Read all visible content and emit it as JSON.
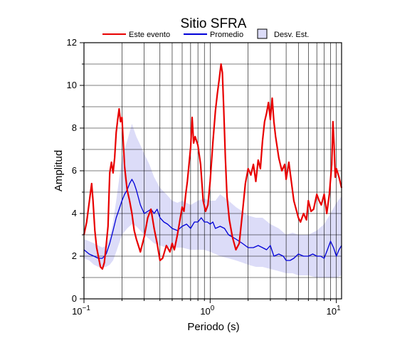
{
  "chart_data": {
    "type": "line",
    "title": "Sitio SFRA",
    "xlabel": "Periodo (s)",
    "ylabel": "Amplitud",
    "x_scale": "log",
    "xlim": [
      0.1,
      11
    ],
    "ylim": [
      0,
      12
    ],
    "x_ticks": [
      {
        "value": 0.1,
        "base": "10",
        "exp": "−1"
      },
      {
        "value": 1,
        "label": "10",
        "exp": "0"
      },
      {
        "value": 10,
        "label": "10",
        "exp": "1"
      }
    ],
    "y_ticks": [
      0,
      2,
      4,
      6,
      8,
      10,
      12
    ],
    "grid": true,
    "legend": {
      "placement": "top",
      "items": [
        {
          "label": "Este evento",
          "color": "#e80000",
          "kind": "line"
        },
        {
          "label": "Promedio",
          "color": "#0000d8",
          "kind": "line"
        },
        {
          "label": "Desv. Est.",
          "color": "#dcdcf8",
          "kind": "box"
        }
      ]
    },
    "colors": {
      "event": "#e80000",
      "mean": "#0000d8",
      "band": "#dcdcf8",
      "grid": "#000000"
    },
    "band": {
      "name": "Desv. Est.",
      "x": [
        0.1,
        0.11,
        0.12,
        0.13,
        0.14,
        0.15,
        0.16,
        0.17,
        0.18,
        0.19,
        0.2,
        0.22,
        0.24,
        0.26,
        0.28,
        0.3,
        0.33,
        0.36,
        0.4,
        0.45,
        0.5,
        0.55,
        0.6,
        0.7,
        0.8,
        0.9,
        1.0,
        1.1,
        1.2,
        1.4,
        1.6,
        1.8,
        2.0,
        2.3,
        2.6,
        3.0,
        3.5,
        4.0,
        4.5,
        5.0,
        6.0,
        7.0,
        8.0,
        9.0,
        10.0,
        11.0
      ],
      "upper": [
        2.8,
        2.7,
        2.6,
        2.5,
        2.4,
        2.5,
        2.9,
        3.6,
        4.6,
        5.6,
        6.6,
        7.4,
        8.2,
        7.6,
        7.2,
        6.8,
        6.3,
        5.7,
        5.2,
        4.9,
        4.6,
        4.5,
        4.6,
        4.4,
        4.6,
        4.7,
        4.6,
        4.6,
        4.9,
        4.6,
        4.3,
        4.1,
        3.9,
        3.8,
        3.8,
        3.5,
        3.3,
        3.0,
        3.1,
        3.0,
        3.0,
        3.2,
        3.5,
        4.0,
        4.5,
        4.8
      ],
      "lower": [
        1.9,
        1.8,
        1.6,
        1.5,
        1.5,
        1.5,
        1.6,
        1.8,
        2.2,
        2.6,
        3.0,
        3.3,
        3.5,
        3.4,
        3.2,
        3.0,
        2.8,
        2.6,
        2.5,
        2.4,
        2.4,
        2.4,
        2.4,
        2.3,
        2.3,
        2.3,
        2.2,
        2.1,
        2.0,
        1.9,
        1.8,
        1.7,
        1.6,
        1.5,
        1.5,
        1.4,
        1.3,
        1.2,
        1.2,
        1.1,
        1.1,
        1.0,
        1.0,
        1.0,
        1.0,
        1.1
      ]
    },
    "series": [
      {
        "name": "Este evento",
        "x": [
          0.1,
          0.105,
          0.11,
          0.115,
          0.118,
          0.122,
          0.126,
          0.13,
          0.135,
          0.14,
          0.145,
          0.15,
          0.155,
          0.16,
          0.165,
          0.17,
          0.175,
          0.18,
          0.185,
          0.19,
          0.195,
          0.2,
          0.205,
          0.21,
          0.215,
          0.22,
          0.23,
          0.24,
          0.25,
          0.26,
          0.28,
          0.3,
          0.32,
          0.34,
          0.36,
          0.38,
          0.4,
          0.42,
          0.45,
          0.48,
          0.5,
          0.52,
          0.55,
          0.58,
          0.6,
          0.62,
          0.64,
          0.66,
          0.68,
          0.7,
          0.72,
          0.74,
          0.76,
          0.8,
          0.84,
          0.88,
          0.92,
          0.96,
          1.0,
          1.05,
          1.1,
          1.14,
          1.18,
          1.22,
          1.25,
          1.28,
          1.32,
          1.36,
          1.42,
          1.5,
          1.6,
          1.7,
          1.8,
          1.9,
          2.0,
          2.1,
          2.2,
          2.3,
          2.4,
          2.5,
          2.6,
          2.7,
          2.8,
          2.9,
          3.0,
          3.1,
          3.2,
          3.3,
          3.5,
          3.7,
          3.9,
          4.0,
          4.2,
          4.4,
          4.6,
          4.8,
          5.0,
          5.2,
          5.5,
          5.8,
          6.0,
          6.3,
          6.6,
          7.0,
          7.3,
          7.6,
          8.0,
          8.4,
          8.8,
          9.0,
          9.2,
          9.4,
          9.6,
          9.8,
          10.0,
          10.5,
          11.0
        ],
        "values": [
          3.0,
          3.6,
          4.5,
          5.4,
          4.6,
          3.2,
          2.4,
          2.0,
          1.5,
          1.4,
          1.7,
          2.5,
          3.4,
          5.9,
          6.4,
          5.9,
          6.6,
          7.8,
          8.4,
          8.9,
          8.3,
          8.5,
          7.3,
          6.2,
          5.6,
          5.1,
          4.6,
          4.0,
          3.2,
          2.8,
          2.2,
          2.9,
          3.8,
          4.2,
          3.3,
          2.6,
          1.8,
          1.9,
          2.5,
          2.2,
          2.6,
          2.3,
          3.0,
          3.8,
          4.3,
          4.1,
          4.9,
          5.5,
          6.3,
          7.1,
          8.5,
          7.3,
          7.6,
          7.2,
          6.3,
          4.6,
          4.1,
          4.4,
          5.5,
          7.3,
          8.8,
          9.6,
          10.3,
          11.0,
          10.6,
          9.0,
          6.6,
          4.8,
          3.7,
          2.9,
          2.3,
          2.6,
          4.0,
          5.4,
          6.1,
          5.8,
          6.3,
          5.5,
          6.5,
          6.1,
          7.4,
          8.3,
          8.7,
          9.2,
          8.4,
          9.4,
          8.3,
          7.6,
          6.6,
          6.0,
          6.3,
          5.6,
          6.4,
          5.5,
          4.6,
          4.2,
          3.8,
          3.6,
          4.0,
          3.7,
          4.6,
          4.1,
          4.2,
          4.9,
          4.6,
          4.4,
          4.9,
          4.0,
          4.9,
          5.6,
          6.3,
          8.3,
          7.2,
          5.7,
          6.1,
          5.7,
          5.2
        ]
      },
      {
        "name": "Promedio",
        "x": [
          0.1,
          0.11,
          0.12,
          0.13,
          0.14,
          0.15,
          0.16,
          0.17,
          0.18,
          0.19,
          0.2,
          0.21,
          0.22,
          0.23,
          0.24,
          0.25,
          0.26,
          0.28,
          0.3,
          0.32,
          0.34,
          0.36,
          0.38,
          0.4,
          0.43,
          0.46,
          0.5,
          0.55,
          0.6,
          0.65,
          0.7,
          0.75,
          0.8,
          0.85,
          0.9,
          0.95,
          1.0,
          1.05,
          1.1,
          1.2,
          1.3,
          1.4,
          1.5,
          1.6,
          1.8,
          2.0,
          2.2,
          2.4,
          2.6,
          2.8,
          3.0,
          3.2,
          3.5,
          3.8,
          4.0,
          4.3,
          4.6,
          5.0,
          5.5,
          6.0,
          6.5,
          7.0,
          7.5,
          8.0,
          8.5,
          9.0,
          9.5,
          10.0,
          10.5,
          11.0
        ],
        "values": [
          2.3,
          2.1,
          2.0,
          1.9,
          1.9,
          2.1,
          2.6,
          3.2,
          3.8,
          4.2,
          4.6,
          4.9,
          5.1,
          5.4,
          5.6,
          5.4,
          5.1,
          4.4,
          4.0,
          4.1,
          4.2,
          4.0,
          4.2,
          3.8,
          3.6,
          3.5,
          3.3,
          3.2,
          3.4,
          3.5,
          3.3,
          3.6,
          3.6,
          3.8,
          3.6,
          3.6,
          3.5,
          3.6,
          3.3,
          3.4,
          3.3,
          3.0,
          2.9,
          2.8,
          2.6,
          2.4,
          2.4,
          2.5,
          2.4,
          2.3,
          2.5,
          2.0,
          2.1,
          2.0,
          1.8,
          1.8,
          1.9,
          2.1,
          2.0,
          2.0,
          2.1,
          2.0,
          2.0,
          1.9,
          2.3,
          2.7,
          2.4,
          2.0,
          2.3,
          2.5
        ]
      }
    ]
  }
}
